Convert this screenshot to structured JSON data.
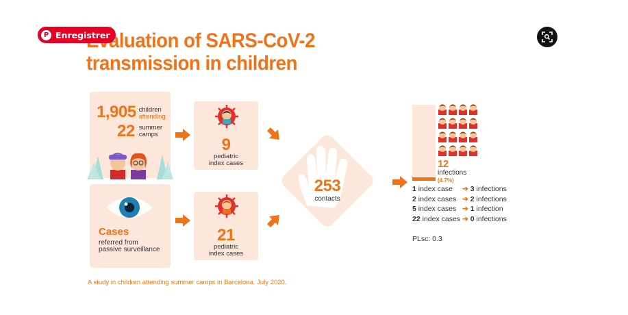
{
  "overlay": {
    "save_label": "Enregistrer",
    "save_icon": "pinterest-icon",
    "lens_icon": "visual-search-icon"
  },
  "infographic": {
    "title_line1": "Evaluation of SARS-CoV-2",
    "title_line2": "transmission in children",
    "camps": {
      "children_count": "1,905",
      "children_label": "children",
      "attending_label": "attending",
      "camps_count": "22",
      "camps_label_1": "summer",
      "camps_label_2": "camps"
    },
    "pediatric_top": {
      "count": "9",
      "label_1": "pediatric",
      "label_2": "index cases"
    },
    "cases": {
      "title": "Cases",
      "label_1": "referred from",
      "label_2": "passive surveillance"
    },
    "pediatric_bottom": {
      "count": "21",
      "label_1": "pediatric",
      "label_2": "index cases"
    },
    "contacts": {
      "count": "253",
      "label": "contacts"
    },
    "infections": {
      "count": "12",
      "label": "infections",
      "percent": "(4.7%)"
    },
    "breakdown": [
      {
        "index": "1",
        "index_label": "index case",
        "infections": "3",
        "infections_label": "infections"
      },
      {
        "index": "2",
        "index_label": "index cases",
        "infections": "2",
        "infections_label": "infections"
      },
      {
        "index": "5",
        "index_label": "index cases",
        "infections": "1",
        "infections_label": "infection"
      },
      {
        "index": "22",
        "index_label": "index cases",
        "infections": "0",
        "infections_label": "infections"
      }
    ],
    "plsc": "PLsc: 0.3",
    "footnote": "A study in children attending summer camps in Barcelona. July 2020.",
    "colors": {
      "accent": "#f07318",
      "panel": "#fde6da",
      "pinterest": "#e60023"
    }
  }
}
